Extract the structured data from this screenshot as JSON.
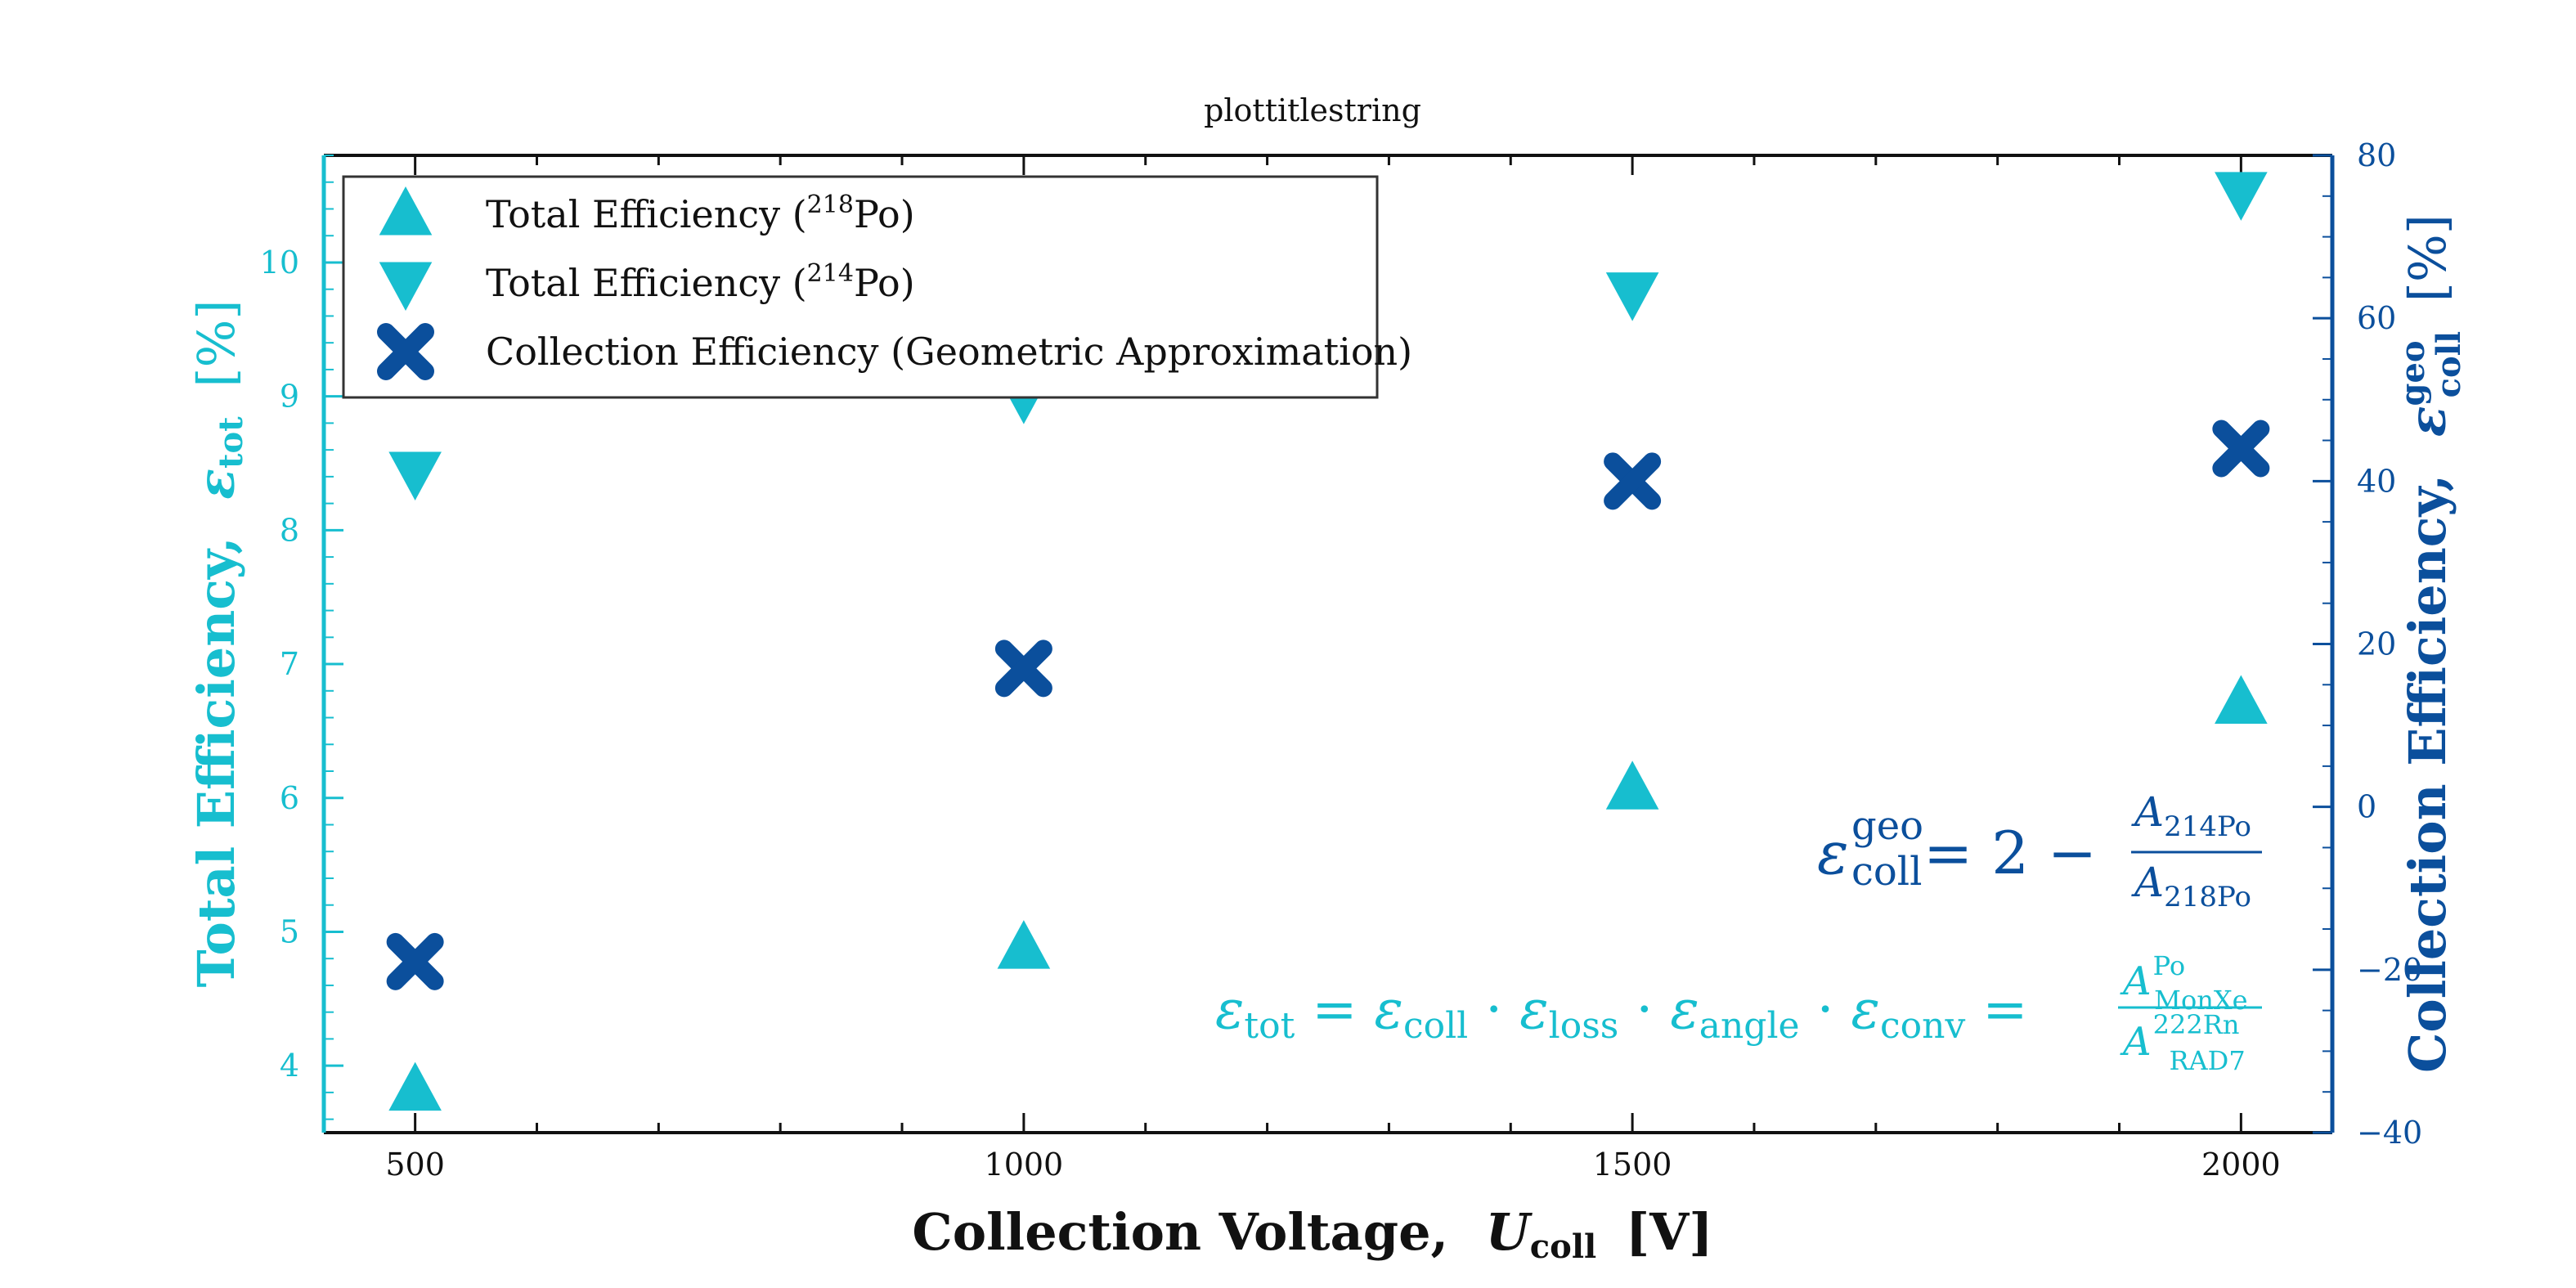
{
  "colors": {
    "cyan": "#17becf",
    "blue": "#0b4f9c",
    "axis": "#111111"
  },
  "chart_data": {
    "type": "scatter",
    "title": "plottitlestring",
    "xlabel": "Collection Voltage,  U_coll [V]",
    "xlabel_parts": {
      "main": "Collection Voltage,",
      "sym": "U",
      "sub": "coll",
      "unit": "[V]"
    },
    "ylabel_left": "Total Efficiency,  ε_tot [%]",
    "ylabel_left_parts": {
      "main": "Total Efficiency,",
      "sym": "ε",
      "sub": "tot",
      "unit": "[%]"
    },
    "ylabel_right": "Collection Efficiency,  ε_coll^geo [%]",
    "ylabel_right_parts": {
      "main": "Collection Efficiency,",
      "sym": "ε",
      "sub": "coll",
      "sup": "geo",
      "unit": "[%]"
    },
    "xlim": [
      425,
      2075
    ],
    "ylim_left": [
      3.5,
      10.8
    ],
    "ylim_right": [
      -40,
      80
    ],
    "x_ticks": [
      500,
      1000,
      1500,
      2000
    ],
    "x_tick_labels": [
      "500",
      "1000",
      "1500",
      "2000"
    ],
    "x_minor_step": 100,
    "y_left_ticks": [
      4,
      5,
      6,
      7,
      8,
      9,
      10
    ],
    "y_left_tick_labels": [
      "4",
      "5",
      "6",
      "7",
      "8",
      "9",
      "10"
    ],
    "y_right_ticks": [
      -40,
      -20,
      0,
      20,
      40,
      60,
      80
    ],
    "y_right_tick_labels": [
      "−40",
      "−20",
      "0",
      "20",
      "40",
      "60",
      "80"
    ],
    "grid": false,
    "legend_position": "top-left",
    "series": [
      {
        "name": "Total Efficiency (218Po)",
        "label_prefix": "Total Efficiency (",
        "label_iso": "218",
        "label_suffix": "Po)",
        "axis": "left",
        "marker": "triangle-up",
        "x": [
          500,
          1000,
          1500,
          2000
        ],
        "y": [
          3.82,
          4.88,
          6.07,
          6.71
        ]
      },
      {
        "name": "Total Efficiency (214Po)",
        "label_prefix": "Total Efficiency (",
        "label_iso": "214",
        "label_suffix": "Po)",
        "axis": "left",
        "marker": "triangle-down",
        "x": [
          500,
          1000,
          1500,
          2000
        ],
        "y": [
          8.43,
          9.0,
          9.77,
          10.52
        ]
      },
      {
        "name": "Collection Efficiency (Geometric Approximation)",
        "label_prefix": "Collection Efficiency (Geometric Approximation)",
        "label_iso": "",
        "label_suffix": "",
        "axis": "right",
        "marker": "x",
        "x": [
          500,
          1000,
          1500,
          2000
        ],
        "y": [
          -19,
          17,
          40,
          44
        ]
      }
    ],
    "annotations": [
      {
        "id": "eq1",
        "text": "ε_coll^geo = 2 − A_214Po / A_218Po"
      },
      {
        "id": "eq2",
        "text": "ε_tot = ε_coll · ε_loss · ε_angle · ε_conv = A^Po_MonXe / A^222Rn_RAD7"
      }
    ]
  }
}
